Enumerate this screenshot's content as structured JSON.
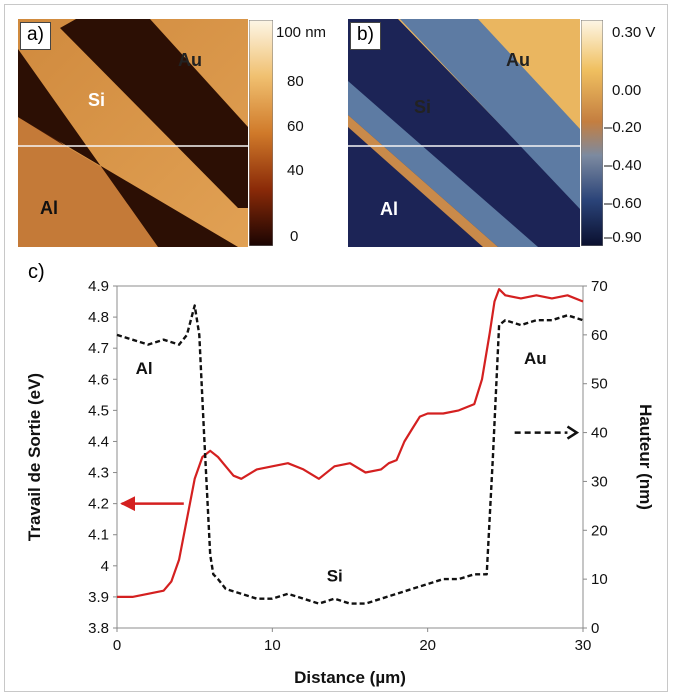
{
  "panel_a": {
    "label": "a)",
    "regions": [
      "Au",
      "Si",
      "Al"
    ],
    "colorbar_ticks": [
      "100 nm",
      "80",
      "60",
      "40",
      "0"
    ]
  },
  "panel_b": {
    "label": "b)",
    "regions": [
      "Au",
      "Si",
      "Al"
    ],
    "colorbar_ticks": [
      "0.30 V",
      "0.00",
      "–0.20",
      "–0.40",
      "–0.60",
      "–0.90"
    ]
  },
  "panel_c": {
    "label": "c)"
  },
  "colors": {
    "work_function": "#d42020",
    "height": "#111111",
    "au_color": "#e8b25a",
    "si_color": "#4d6c95",
    "al_color": "#1c2456"
  },
  "chart_data": {
    "type": "line",
    "xlabel": "Distance (µm)",
    "ylabel": "Travail de Sortie (eV)",
    "y2label": "Hauteur (nm)",
    "xlim": [
      0,
      30
    ],
    "ylim": [
      3.8,
      4.9
    ],
    "y2lim": [
      0,
      70
    ],
    "xticks": [
      "0",
      "10",
      "20",
      "30"
    ],
    "yticks": [
      "3.8",
      "3.9",
      "4",
      "4.1",
      "4.2",
      "4.3",
      "4.4",
      "4.5",
      "4.6",
      "4.7",
      "4.8",
      "4.9"
    ],
    "y2ticks": [
      "0",
      "10",
      "20",
      "30",
      "40",
      "50",
      "60",
      "70"
    ],
    "annotations": [
      "Al",
      "Si",
      "Au"
    ],
    "series": [
      {
        "axis": "left",
        "style": "solid",
        "color": "#d42020",
        "x": [
          0,
          1,
          2,
          3,
          3.5,
          4,
          4.5,
          5,
          5.5,
          6,
          6.5,
          7,
          7.5,
          8,
          9,
          10,
          11,
          12,
          13,
          14,
          15,
          16,
          17,
          17.5,
          18,
          18.5,
          19,
          19.5,
          20,
          21,
          22,
          23,
          23.5,
          24,
          24.3,
          24.6,
          25,
          26,
          27,
          28,
          29,
          30
        ],
        "values": [
          3.9,
          3.9,
          3.91,
          3.92,
          3.95,
          4.02,
          4.15,
          4.28,
          4.35,
          4.37,
          4.35,
          4.32,
          4.29,
          4.28,
          4.31,
          4.32,
          4.33,
          4.31,
          4.28,
          4.32,
          4.33,
          4.3,
          4.31,
          4.33,
          4.34,
          4.4,
          4.44,
          4.48,
          4.49,
          4.49,
          4.5,
          4.52,
          4.6,
          4.75,
          4.85,
          4.89,
          4.87,
          4.86,
          4.87,
          4.86,
          4.87,
          4.85
        ]
      },
      {
        "axis": "right",
        "style": "dashed",
        "color": "#111111",
        "x": [
          0,
          1,
          2,
          3,
          4,
          4.5,
          5,
          5.3,
          5.6,
          6,
          6.2,
          6.5,
          7,
          8,
          9,
          10,
          11,
          12,
          13,
          14,
          15,
          16,
          17,
          18,
          19,
          20,
          21,
          22,
          23,
          23.8,
          24.2,
          24.6,
          25,
          26,
          27,
          28,
          29,
          30
        ],
        "values": [
          60,
          59,
          58,
          59,
          58,
          60,
          66,
          60,
          40,
          15,
          11,
          10,
          8,
          7,
          6,
          6,
          7,
          6,
          5,
          6,
          5,
          5,
          6,
          7,
          8,
          9,
          10,
          10,
          11,
          11,
          35,
          62,
          63,
          62,
          63,
          63,
          64,
          63
        ]
      }
    ]
  }
}
